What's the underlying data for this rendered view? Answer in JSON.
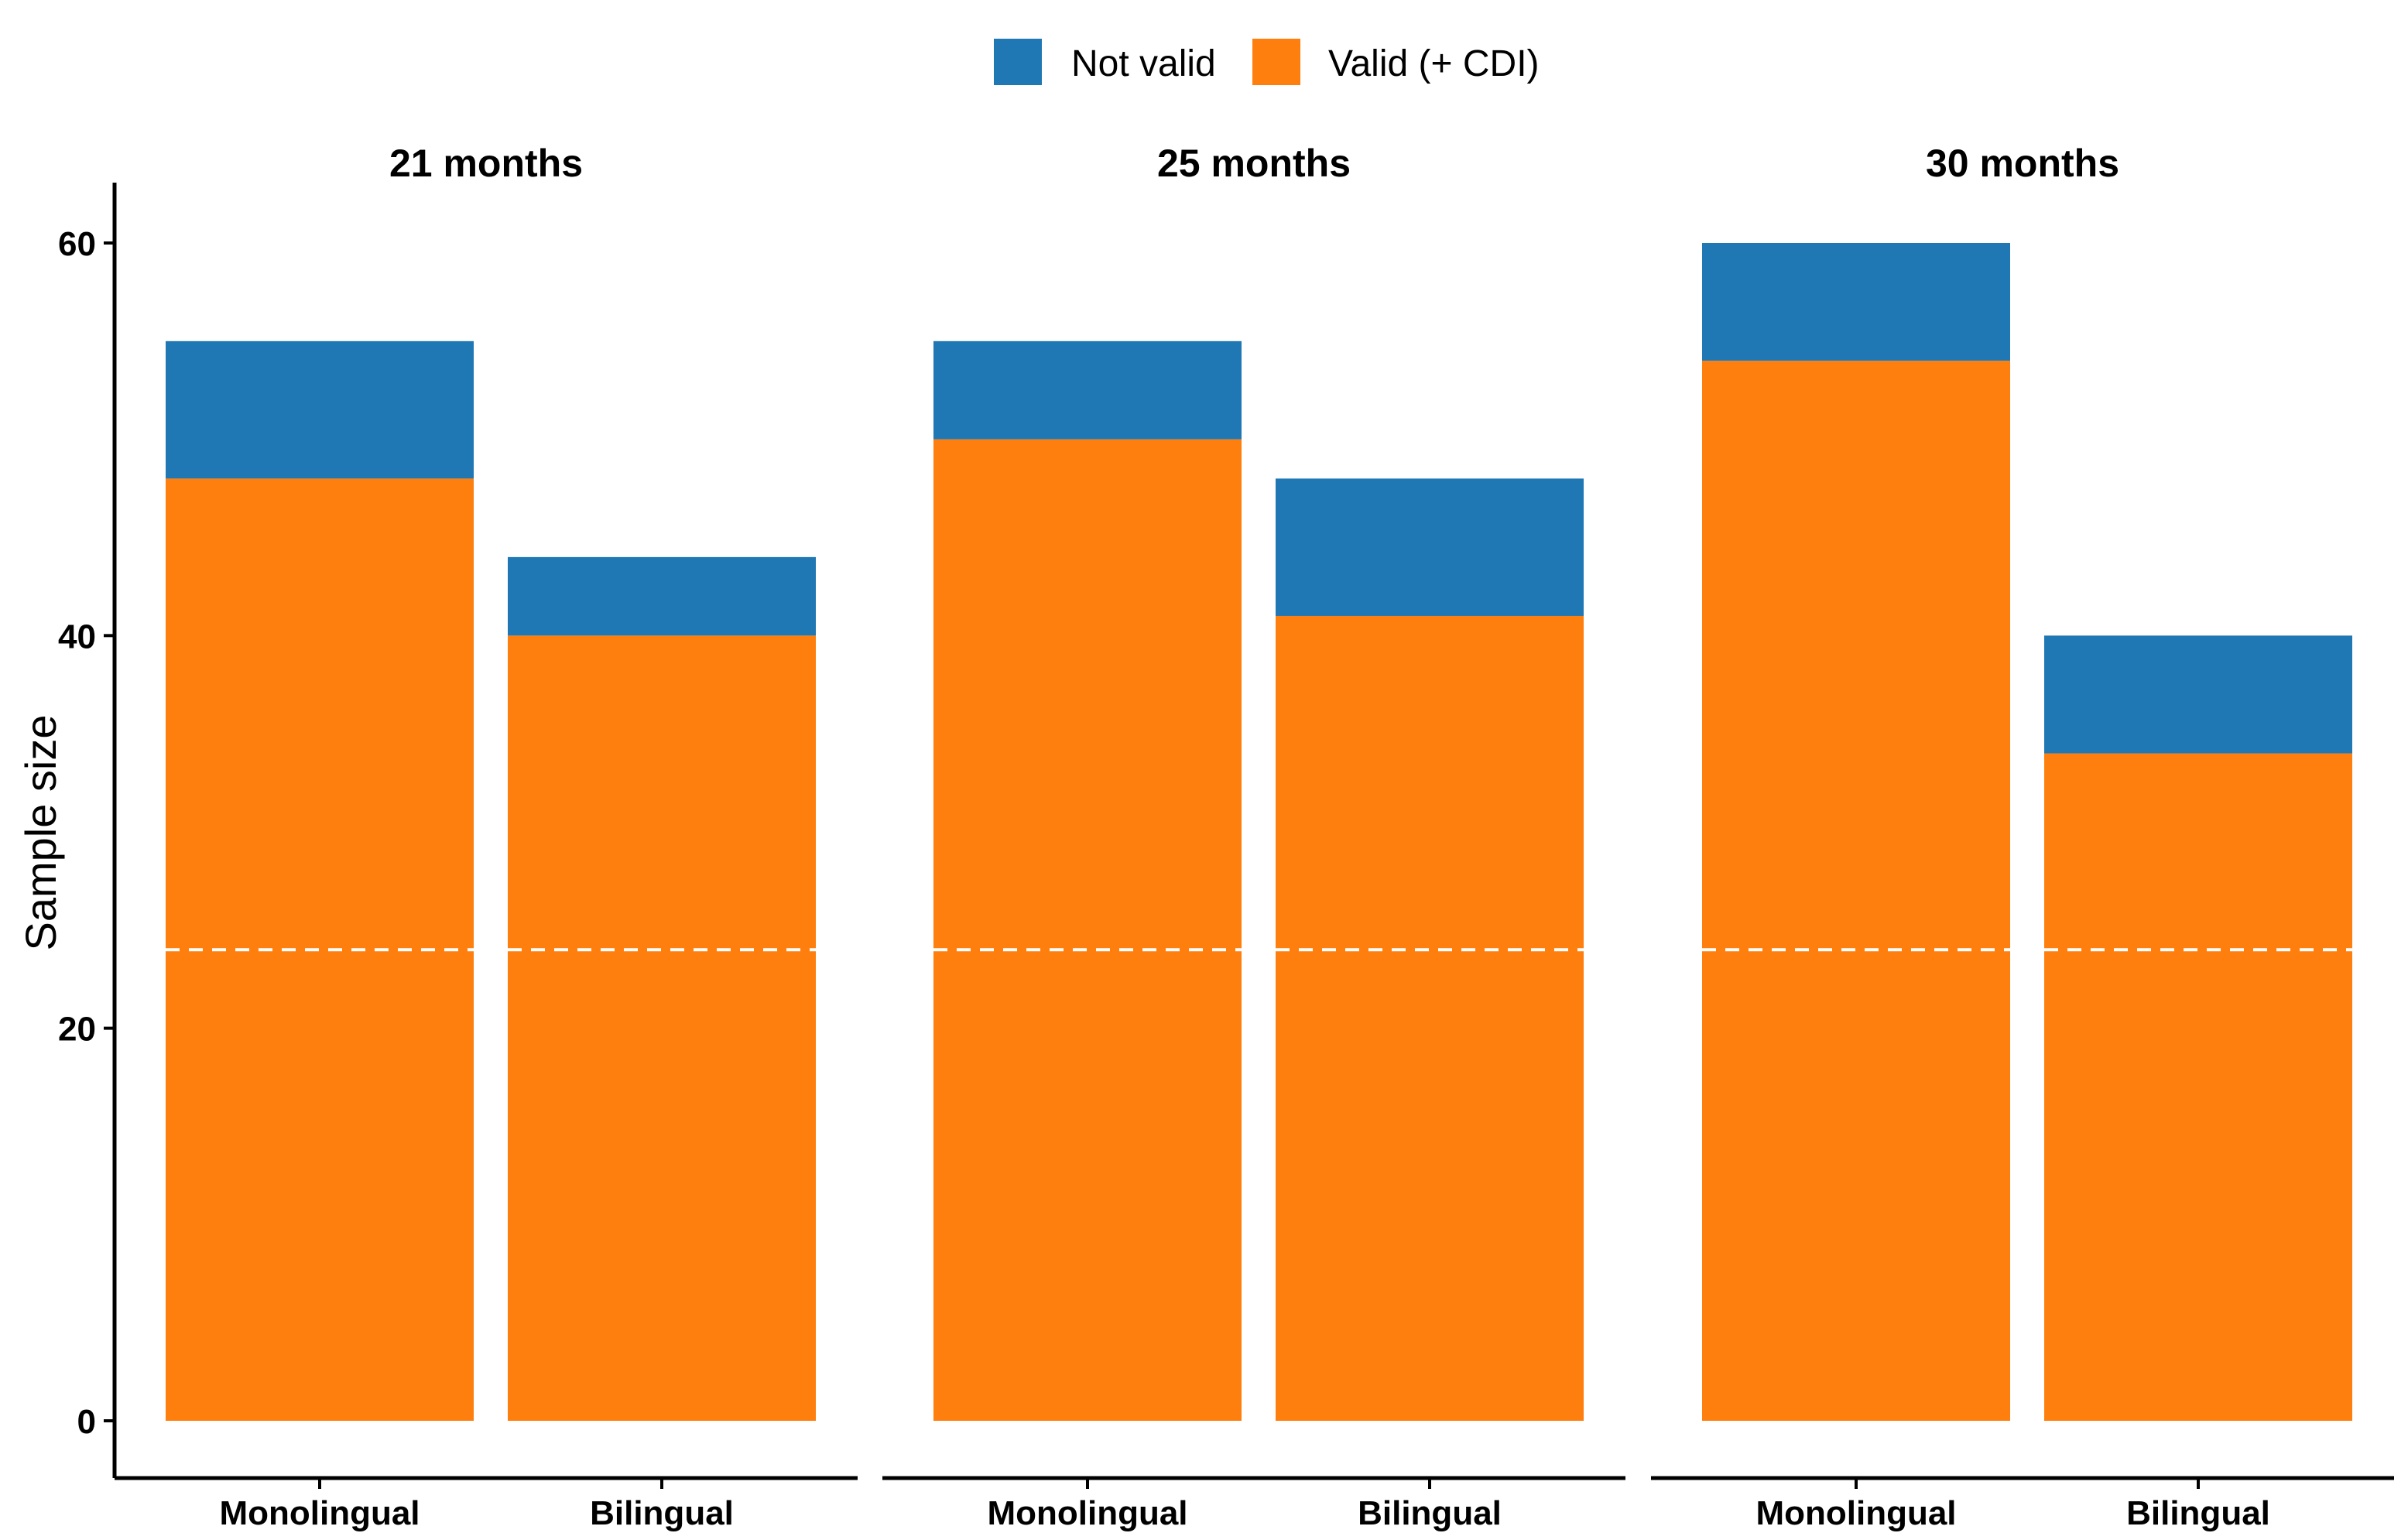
{
  "chart_data": {
    "type": "bar",
    "stacked": true,
    "ylabel": "Sample size",
    "xlabel": "",
    "ylim": [
      0,
      63
    ],
    "yticks": [
      0,
      20,
      40,
      60
    ],
    "reference_line": {
      "y": 24,
      "style": "dashed",
      "color": "#ffffff"
    },
    "legend": {
      "placement": "top",
      "entries": [
        {
          "name": "Not valid",
          "color": "#1f77b4"
        },
        {
          "name": "Valid (+ CDI)",
          "color": "#ff7f0e"
        }
      ]
    },
    "categories": [
      "Monolingual",
      "Bilingual"
    ],
    "facets": [
      {
        "title": "21 months",
        "series": [
          {
            "name": "Valid (+ CDI)",
            "color": "#ff7f0e",
            "values": [
              48,
              40
            ]
          },
          {
            "name": "Not valid",
            "color": "#1f77b4",
            "values": [
              7,
              4
            ]
          }
        ]
      },
      {
        "title": "25 months",
        "series": [
          {
            "name": "Valid (+ CDI)",
            "color": "#ff7f0e",
            "values": [
              50,
              41
            ]
          },
          {
            "name": "Not valid",
            "color": "#1f77b4",
            "values": [
              5,
              7
            ]
          }
        ]
      },
      {
        "title": "30 months",
        "series": [
          {
            "name": "Valid (+ CDI)",
            "color": "#ff7f0e",
            "values": [
              54,
              34
            ]
          },
          {
            "name": "Not valid",
            "color": "#1f77b4",
            "values": [
              6,
              6
            ]
          }
        ]
      }
    ]
  }
}
